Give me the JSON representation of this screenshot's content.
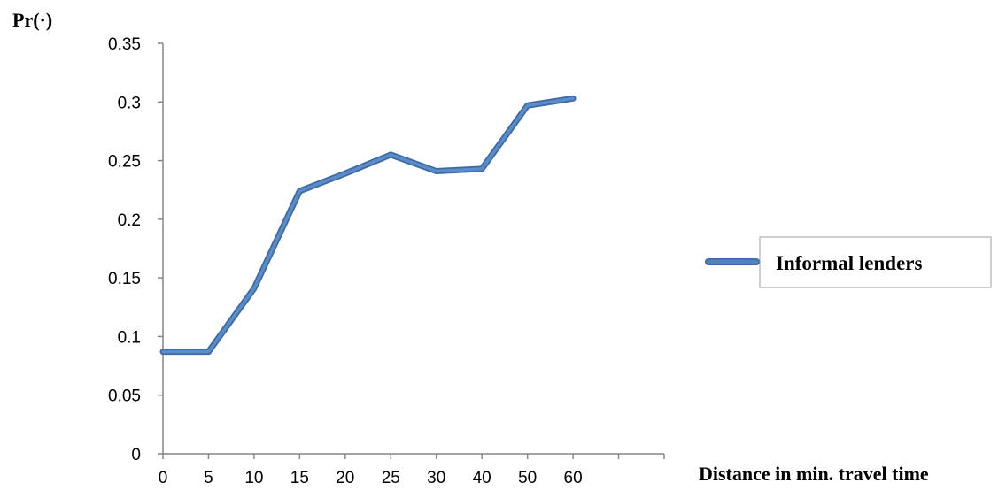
{
  "chart_data": {
    "type": "line",
    "ylabel": "Pr(·)",
    "xlabel": "Distance in min. travel time",
    "categories": [
      "0",
      "5",
      "10",
      "15",
      "20",
      "25",
      "30",
      "40",
      "50",
      "60"
    ],
    "series": [
      {
        "name": "Informal lenders",
        "values": [
          0.087,
          0.087,
          0.141,
          0.224,
          0.239,
          0.255,
          0.241,
          0.243,
          0.297,
          0.303
        ]
      }
    ],
    "ylim": [
      0,
      0.35
    ],
    "yticks": [
      "0",
      "0.05",
      "0.1",
      "0.15",
      "0.2",
      "0.25",
      "0.3",
      "0.35"
    ],
    "legend_position": "right",
    "line_color": "#4a7ebb",
    "grid": false
  }
}
